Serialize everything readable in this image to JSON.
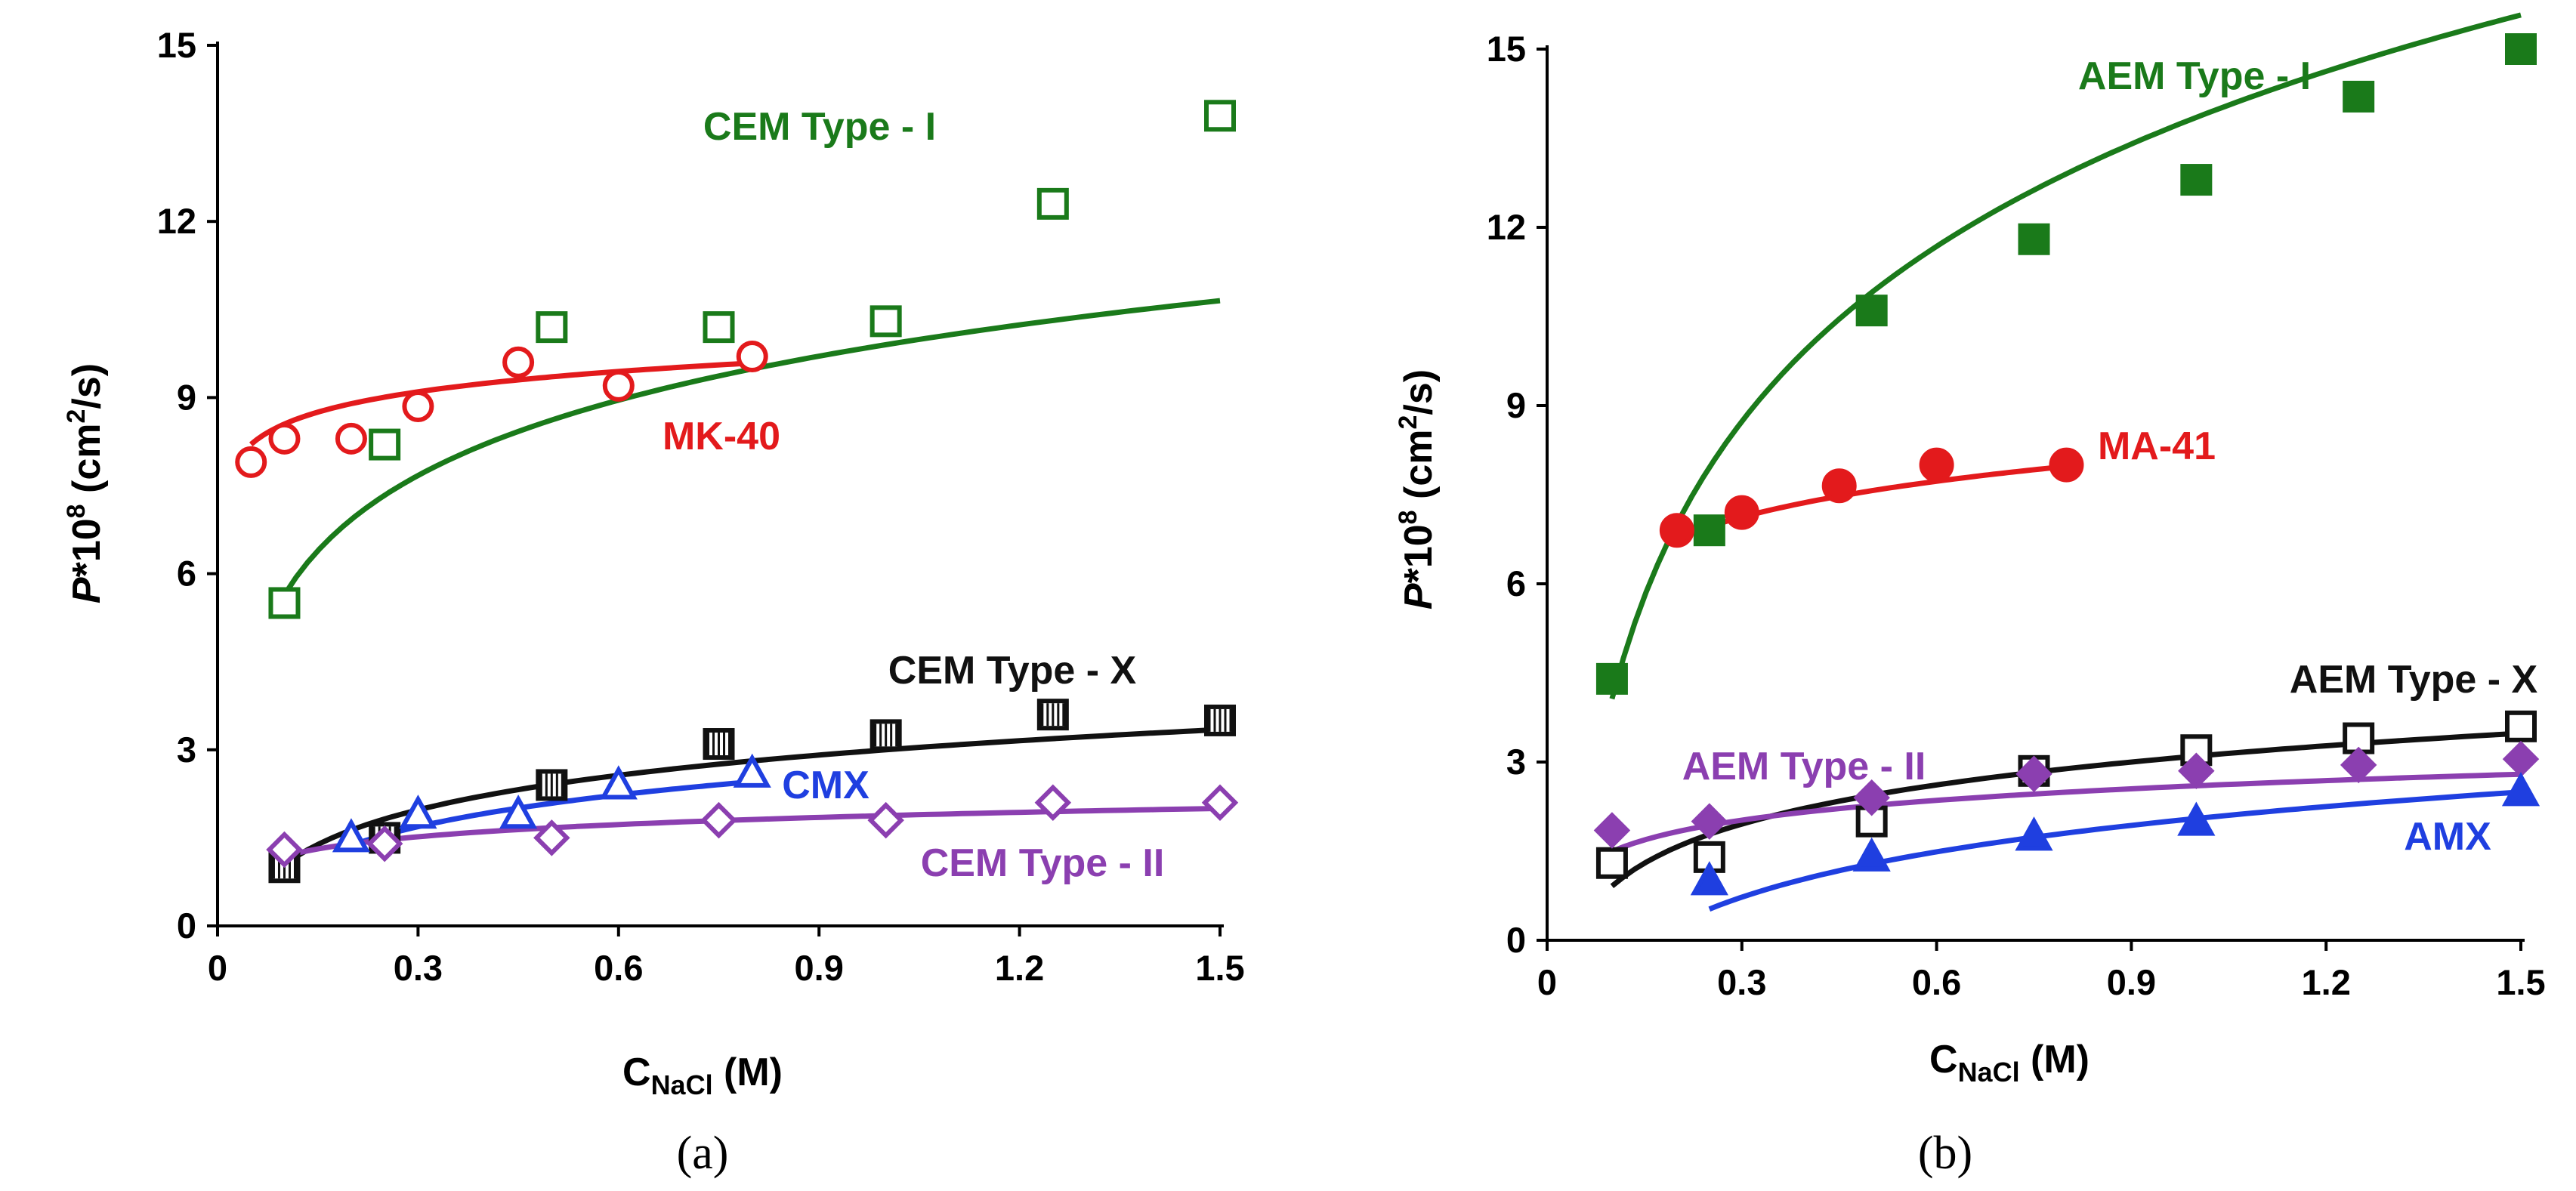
{
  "chart_data": [
    {
      "type": "scatter",
      "panel_label": "(a)",
      "xlabel_main": "C",
      "xlabel_sub": "NaCl",
      "xlabel_unit": "(M)",
      "ylabel_var": "P",
      "ylabel_mid": "*10",
      "ylabel_exp": "8",
      "ylabel_unit": " (cm",
      "ylabel_unit_exp": "2",
      "ylabel_unit_end": "/s)",
      "xlim": [
        0,
        1.5
      ],
      "ylim": [
        0,
        15
      ],
      "xticks": [
        "0",
        "0.3",
        "0.6",
        "0.9",
        "1.2",
        "1.5"
      ],
      "yticks": [
        "0",
        "3",
        "6",
        "9",
        "12",
        "15"
      ],
      "series": [
        {
          "name": "CEM Type - I",
          "color": "#1a7a1a",
          "marker": "square-open",
          "x": [
            0.1,
            0.25,
            0.5,
            0.75,
            1.0,
            1.25,
            1.5
          ],
          "y": [
            5.5,
            8.2,
            10.2,
            10.2,
            10.3,
            12.3,
            13.8
          ],
          "fit": {
            "a": 9.9,
            "b": 1.85
          }
        },
        {
          "name": "MK-40",
          "color": "#e31a1c",
          "marker": "circle-open",
          "x": [
            0.05,
            0.1,
            0.2,
            0.3,
            0.45,
            0.6,
            0.8
          ],
          "y": [
            7.9,
            8.3,
            8.3,
            8.85,
            9.6,
            9.2,
            9.7
          ],
          "fit": {
            "a": 9.7,
            "b": 0.5
          }
        },
        {
          "name": "CEM Type - X",
          "color": "#111111",
          "marker": "square-hatched",
          "x": [
            0.1,
            0.25,
            0.5,
            0.75,
            1.0,
            1.25,
            1.5
          ],
          "y": [
            1.0,
            1.5,
            2.4,
            3.1,
            3.25,
            3.6,
            3.5
          ],
          "fit": {
            "a": 3.0,
            "b": 0.85
          }
        },
        {
          "name": "CMX",
          "color": "#1f3fe0",
          "marker": "triangle-open",
          "x": [
            0.2,
            0.3,
            0.45,
            0.6,
            0.8
          ],
          "y": [
            1.5,
            1.9,
            1.9,
            2.4,
            2.6
          ],
          "fit": {
            "a": 2.63,
            "b": 0.78
          }
        },
        {
          "name": "CEM Type - II",
          "color": "#8b3fb0",
          "marker": "diamond-open",
          "x": [
            0.1,
            0.25,
            0.5,
            0.75,
            1.0,
            1.25,
            1.5
          ],
          "y": [
            1.3,
            1.4,
            1.5,
            1.8,
            1.8,
            2.1,
            2.1
          ],
          "fit": {
            "a": 1.88,
            "b": 0.3
          }
        }
      ],
      "annotations": [
        "CEM Type - I",
        "MK-40",
        "CEM Type - X",
        "CMX",
        "CEM Type - II"
      ]
    },
    {
      "type": "scatter",
      "panel_label": "(b)",
      "xlabel_main": "C",
      "xlabel_sub": "NaCl",
      "xlabel_unit": "(M)",
      "ylabel_var": "P",
      "ylabel_mid": "*10",
      "ylabel_exp": "8",
      "ylabel_unit": " (cm",
      "ylabel_unit_exp": "2",
      "ylabel_unit_end": "/s)",
      "xlim": [
        0,
        1.5
      ],
      "ylim": [
        0,
        15
      ],
      "xticks": [
        "0",
        "0.3",
        "0.6",
        "0.9",
        "1.2",
        "1.5"
      ],
      "yticks": [
        "0",
        "3",
        "6",
        "9",
        "12",
        "15"
      ],
      "series": [
        {
          "name": "AEM Type - I",
          "color": "#1a7a1a",
          "marker": "square-filled",
          "x": [
            0.1,
            0.25,
            0.5,
            0.75,
            1.0,
            1.25,
            1.5
          ],
          "y": [
            4.4,
            6.9,
            10.6,
            11.8,
            12.8,
            14.2,
            15.0
          ],
          "fit": {
            "a": 13.85,
            "b": 4.25
          }
        },
        {
          "name": "MA-41",
          "color": "#e31a1c",
          "marker": "circle-filled",
          "x": [
            0.2,
            0.3,
            0.45,
            0.6,
            0.8
          ],
          "y": [
            6.9,
            7.2,
            7.65,
            8.0,
            8.0
          ],
          "fit": {
            "a": 8.17,
            "b": 0.87
          }
        },
        {
          "name": "AEM Type - X",
          "color": "#111111",
          "marker": "square-open",
          "x": [
            0.1,
            0.25,
            0.5,
            0.75,
            1.0,
            1.25,
            1.5
          ],
          "y": [
            1.3,
            1.4,
            2.0,
            2.85,
            3.2,
            3.4,
            3.6
          ],
          "fit": {
            "a": 3.1,
            "b": 0.95
          }
        },
        {
          "name": "AEM Type - II",
          "color": "#8b3fb0",
          "marker": "diamond-filled",
          "x": [
            0.1,
            0.25,
            0.5,
            0.75,
            1.0,
            1.25,
            1.5
          ],
          "y": [
            1.85,
            2.0,
            2.4,
            2.8,
            2.85,
            2.95,
            3.05
          ],
          "fit": {
            "a": 2.6,
            "b": 0.48
          }
        },
        {
          "name": "AMX",
          "color": "#1f3fe0",
          "marker": "triangle-filled",
          "x": [
            0.25,
            0.5,
            0.75,
            1.0,
            1.5
          ],
          "y": [
            1.0,
            1.4,
            1.75,
            2.0,
            2.5
          ],
          "fit": {
            "a": 2.05,
            "b": 1.1
          }
        }
      ],
      "annotations": [
        "AEM Type - I",
        "MA-41",
        "AEM Type - X",
        "AEM Type - II",
        "AMX"
      ]
    }
  ]
}
